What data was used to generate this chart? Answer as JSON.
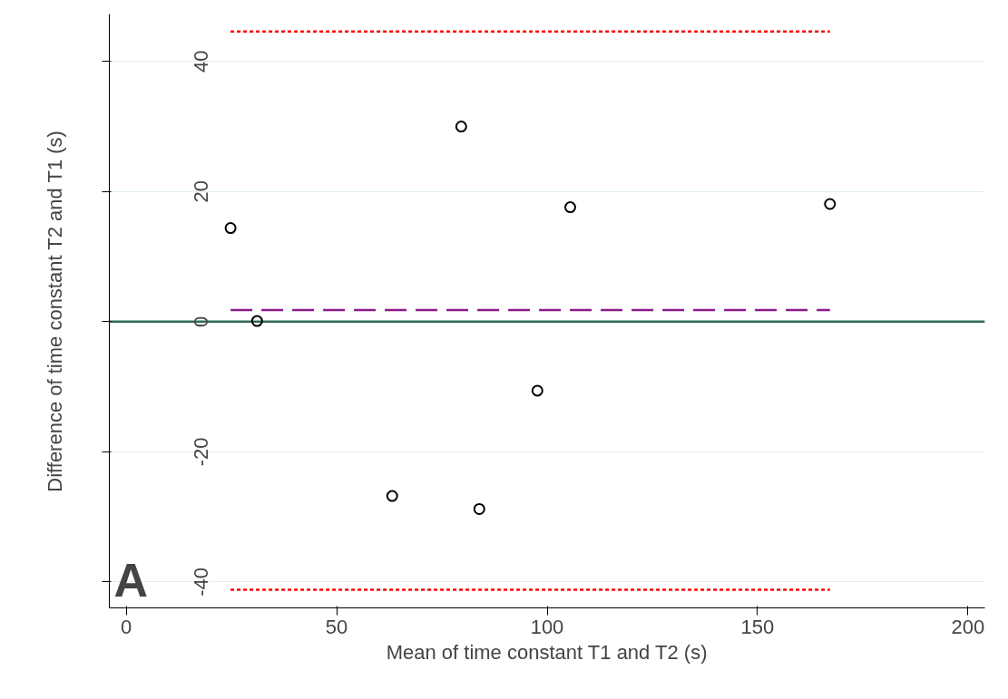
{
  "chart_data": {
    "type": "scatter",
    "xlabel": "Mean of time constant T1 and T2 (s)",
    "ylabel": "Difference of time constant T2 and T1 (s)",
    "x": [
      24.8,
      31.1,
      79.6,
      105.5,
      167.2,
      97.7,
      63.2,
      83.9
    ],
    "values": [
      14.4,
      0.1,
      30.0,
      17.6,
      18.1,
      -10.6,
      -26.8,
      -28.8
    ],
    "color": "#000000",
    "marker": "circle",
    "xlim": [
      -4,
      204
    ],
    "ylim": [
      -44,
      47.3
    ],
    "xticks": [
      0,
      50,
      100,
      150,
      200
    ],
    "yticks": [
      -40,
      -20,
      0,
      20,
      40
    ],
    "grid": "y",
    "ref_lines": [
      {
        "axis": "y",
        "value": 44.6,
        "color": "#ff0000",
        "line_style": "dotted"
      },
      {
        "axis": "y",
        "value": -41.2,
        "color": "#ff0000",
        "line_style": "dotted"
      },
      {
        "axis": "y",
        "value": 1.8,
        "color": "#8b1a8b",
        "line_style": "dashed"
      },
      {
        "axis": "y",
        "value": 0,
        "color": "#2f6b5a",
        "line_style": "solid"
      }
    ],
    "annotations": [
      "A"
    ]
  }
}
